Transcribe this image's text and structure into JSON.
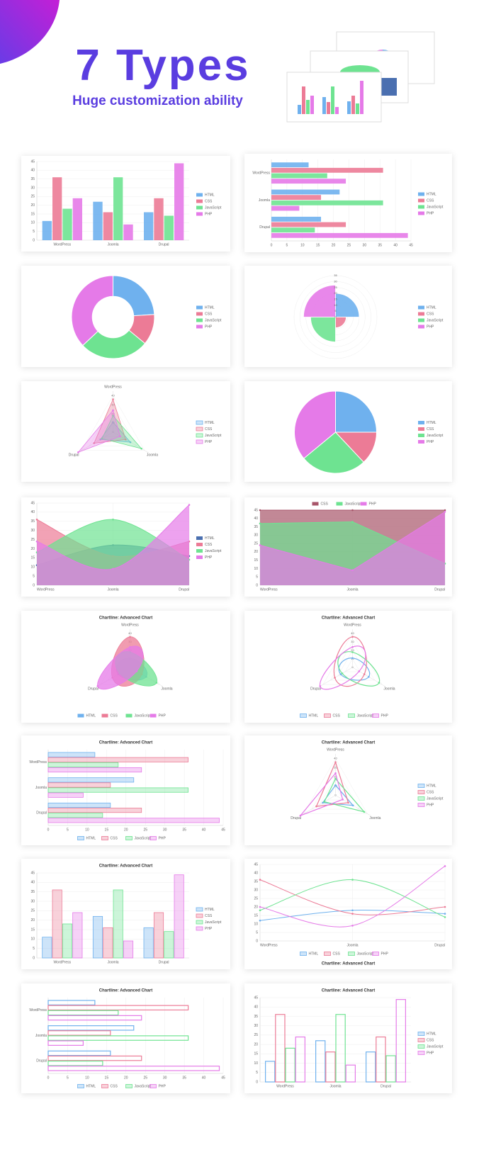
{
  "header": {
    "title": "7 Types",
    "subtitle": "Huge customization ability"
  },
  "chart_data": [
    {
      "type": "bar",
      "categories": [
        "WordPress",
        "Joomla",
        "Drupal"
      ],
      "series": [
        {
          "name": "HTML",
          "color": "#6fb1ee",
          "values": [
            11,
            22,
            16
          ]
        },
        {
          "name": "CSS",
          "color": "#ec7b96",
          "values": [
            36,
            16,
            24
          ]
        },
        {
          "name": "JavaScript",
          "color": "#6ee391",
          "values": [
            18,
            36,
            14
          ]
        },
        {
          "name": "PHP",
          "color": "#e57ae8",
          "values": [
            24,
            9,
            44
          ]
        }
      ],
      "ylim": [
        0,
        45
      ],
      "yticks": [
        0,
        5,
        10,
        15,
        20,
        25,
        30,
        35,
        40,
        45
      ],
      "legend": "right",
      "style": "solid"
    },
    {
      "type": "hbar",
      "categories": [
        "WordPress",
        "Joomla",
        "Drupal"
      ],
      "series": [
        {
          "name": "HTML",
          "color": "#6fb1ee",
          "values": [
            12,
            22,
            16
          ]
        },
        {
          "name": "CSS",
          "color": "#ec7b96",
          "values": [
            36,
            16,
            24
          ]
        },
        {
          "name": "JavaScript",
          "color": "#6ee391",
          "values": [
            18,
            36,
            14
          ]
        },
        {
          "name": "PHP",
          "color": "#e57ae8",
          "values": [
            24,
            9,
            44
          ]
        }
      ],
      "xlim": [
        0,
        45
      ],
      "xticks": [
        0,
        5,
        10,
        15,
        20,
        25,
        30,
        35,
        40,
        45
      ],
      "legend": "right",
      "style": "solid"
    },
    {
      "type": "doughnut",
      "categories": [
        "HTML",
        "CSS",
        "JavaScript",
        "PHP"
      ],
      "values": [
        24,
        12,
        27,
        37
      ],
      "colors": [
        "#6fb1ee",
        "#ec7b96",
        "#6ee391",
        "#e57ae8"
      ],
      "legend": "right"
    },
    {
      "type": "polarArea",
      "categories": [
        "HTML",
        "CSS",
        "JavaScript",
        "PHP"
      ],
      "values": [
        20,
        9,
        21,
        27
      ],
      "colors": [
        "#6fb1ee",
        "#ec7b96",
        "#6ee391",
        "#e57ae8"
      ],
      "rlim": [
        0,
        35
      ],
      "rticks": [
        0,
        5,
        10,
        15,
        20,
        25,
        30,
        35
      ],
      "legend": "right"
    },
    {
      "type": "radar",
      "categories": [
        "WordPress",
        "Joomla",
        "Drupal"
      ],
      "series": [
        {
          "name": "HTML",
          "color": "#6fb1ee",
          "values": [
            11,
            22,
            16
          ]
        },
        {
          "name": "CSS",
          "color": "#ec7b96",
          "values": [
            36,
            16,
            24
          ]
        },
        {
          "name": "JavaScript",
          "color": "#6ee391",
          "values": [
            18,
            36,
            14
          ]
        },
        {
          "name": "PHP",
          "color": "#e57ae8",
          "values": [
            24,
            9,
            44
          ]
        }
      ],
      "rlim": [
        0,
        45
      ],
      "rticks": [
        0,
        10,
        20,
        30,
        40
      ],
      "legend": "right",
      "style": "light",
      "curve": false
    },
    {
      "type": "pie",
      "categories": [
        "HTML",
        "CSS",
        "JavaScript",
        "PHP"
      ],
      "values": [
        25,
        13,
        26,
        36
      ],
      "colors": [
        "#6fb1ee",
        "#ec7b96",
        "#6ee391",
        "#e57ae8"
      ],
      "legend": "right"
    },
    {
      "type": "area",
      "categories": [
        "WordPress",
        "Joomla",
        "Drupal"
      ],
      "series": [
        {
          "name": "HTML",
          "color": "#4a6fb0",
          "values": [
            11,
            22,
            16
          ]
        },
        {
          "name": "CSS",
          "color": "#ec7b96",
          "values": [
            36,
            16,
            24
          ]
        },
        {
          "name": "JavaScript",
          "color": "#6ee391",
          "values": [
            18,
            36,
            14
          ]
        },
        {
          "name": "PHP",
          "color": "#e57ae8",
          "values": [
            24,
            9,
            44
          ]
        }
      ],
      "ylim": [
        0,
        45
      ],
      "yticks": [
        0,
        5,
        10,
        15,
        20,
        25,
        30,
        35,
        40,
        45
      ],
      "legend": "right",
      "style": "solid",
      "curve": true
    },
    {
      "type": "area",
      "categories": [
        "WordPress",
        "Joomla",
        "Drupal"
      ],
      "series": [
        {
          "name": "CSS",
          "color": "#a8566a",
          "values": [
            45,
            45,
            45
          ]
        },
        {
          "name": "JavaScript",
          "color": "#6ee391",
          "values": [
            37,
            38,
            13
          ]
        },
        {
          "name": "PHP",
          "color": "#e57ae8",
          "values": [
            24,
            9,
            44
          ]
        }
      ],
      "ylim": [
        0,
        45
      ],
      "yticks": [
        0,
        5,
        10,
        15,
        20,
        25,
        30,
        35,
        40,
        45
      ],
      "legend": "top",
      "style": "solid",
      "curve": false
    },
    {
      "type": "radar",
      "title": "Chartline: Advanced Chart",
      "categories": [
        "WordPress",
        "Joomla",
        "Drupal"
      ],
      "series": [
        {
          "name": "HTML",
          "color": "#6fb1ee",
          "values": [
            11,
            22,
            16
          ]
        },
        {
          "name": "CSS",
          "color": "#ec7b96",
          "values": [
            36,
            16,
            24
          ]
        },
        {
          "name": "JavaScript",
          "color": "#6ee391",
          "values": [
            18,
            36,
            14
          ]
        },
        {
          "name": "PHP",
          "color": "#e57ae8",
          "values": [
            24,
            9,
            44
          ]
        }
      ],
      "rlim": [
        0,
        45
      ],
      "rticks": [
        0,
        10,
        20,
        30,
        40
      ],
      "legend": "bottom",
      "style": "solid",
      "curve": true
    },
    {
      "type": "radar",
      "title": "Chartline: Advanced Chart",
      "categories": [
        "WordPress",
        "Joomla",
        "Drupal"
      ],
      "series": [
        {
          "name": "HTML",
          "color": "#6fb1ee",
          "values": [
            11,
            22,
            16
          ]
        },
        {
          "name": "CSS",
          "color": "#ec7b96",
          "values": [
            36,
            16,
            24
          ]
        },
        {
          "name": "JavaScript",
          "color": "#6ee391",
          "values": [
            18,
            36,
            14
          ]
        },
        {
          "name": "PHP",
          "color": "#e57ae8",
          "values": [
            24,
            9,
            44
          ]
        }
      ],
      "rlim": [
        0,
        45
      ],
      "rticks": [
        0,
        10,
        20,
        30,
        40
      ],
      "legend": "bottom",
      "style": "outline",
      "curve": true
    },
    {
      "type": "hbar",
      "title": "Chartline: Advanced Chart",
      "categories": [
        "WordPress",
        "Joomla",
        "Drupal"
      ],
      "series": [
        {
          "name": "HTML",
          "color": "#6fb1ee",
          "values": [
            12,
            22,
            16
          ]
        },
        {
          "name": "CSS",
          "color": "#ec7b96",
          "values": [
            36,
            16,
            24
          ]
        },
        {
          "name": "JavaScript",
          "color": "#6ee391",
          "values": [
            18,
            36,
            14
          ]
        },
        {
          "name": "PHP",
          "color": "#e57ae8",
          "values": [
            24,
            9,
            44
          ]
        }
      ],
      "xlim": [
        0,
        45
      ],
      "xticks": [
        0,
        5,
        10,
        15,
        20,
        25,
        30,
        35,
        40,
        45
      ],
      "legend": "bottom",
      "style": "light"
    },
    {
      "type": "radar",
      "title": "Chartline: Advanced Chart",
      "categories": [
        "WordPress",
        "Joomla",
        "Drupal"
      ],
      "series": [
        {
          "name": "HTML",
          "color": "#6fb1ee",
          "values": [
            11,
            22,
            16
          ]
        },
        {
          "name": "CSS",
          "color": "#ec7b96",
          "values": [
            36,
            16,
            24
          ]
        },
        {
          "name": "JavaScript",
          "color": "#6ee391",
          "values": [
            18,
            36,
            14
          ]
        },
        {
          "name": "PHP",
          "color": "#e57ae8",
          "values": [
            24,
            9,
            44
          ]
        }
      ],
      "rlim": [
        0,
        45
      ],
      "rticks": [
        0,
        10,
        20,
        30,
        40
      ],
      "legend": "right",
      "style": "outline",
      "curve": false
    },
    {
      "type": "bar",
      "title": "Chartline: Advanced Chart",
      "categories": [
        "WordPress",
        "Joomla",
        "Drupal"
      ],
      "series": [
        {
          "name": "HTML",
          "color": "#6fb1ee",
          "values": [
            11,
            22,
            16
          ]
        },
        {
          "name": "CSS",
          "color": "#ec7b96",
          "values": [
            36,
            16,
            24
          ]
        },
        {
          "name": "JavaScript",
          "color": "#6ee391",
          "values": [
            18,
            36,
            14
          ]
        },
        {
          "name": "PHP",
          "color": "#e57ae8",
          "values": [
            24,
            9,
            44
          ]
        }
      ],
      "ylim": [
        0,
        45
      ],
      "yticks": [
        0,
        5,
        10,
        15,
        20,
        25,
        30,
        35,
        40,
        45
      ],
      "legend": "right",
      "style": "light"
    },
    {
      "type": "line",
      "title": "Chartline: Advanced Chart",
      "title_position": "bottom",
      "categories": [
        "WordPress",
        "Joomla",
        "Drupal"
      ],
      "series": [
        {
          "name": "HTML",
          "color": "#6fb1ee",
          "values": [
            12,
            18,
            16
          ]
        },
        {
          "name": "CSS",
          "color": "#ec7b96",
          "values": [
            36,
            16,
            20
          ]
        },
        {
          "name": "JavaScript",
          "color": "#6ee391",
          "values": [
            18,
            36,
            14
          ]
        },
        {
          "name": "PHP",
          "color": "#e57ae8",
          "values": [
            20,
            9,
            44
          ]
        }
      ],
      "ylim": [
        0,
        45
      ],
      "yticks": [
        0,
        5,
        10,
        15,
        20,
        25,
        30,
        35,
        40,
        45
      ],
      "legend": "bottom",
      "style": "outline",
      "curve": true
    },
    {
      "type": "hbar",
      "title": "Chartline: Advanced Chart",
      "categories": [
        "WordPress",
        "Joomla",
        "Drupal"
      ],
      "series": [
        {
          "name": "HTML",
          "color": "#6fb1ee",
          "values": [
            12,
            22,
            16
          ]
        },
        {
          "name": "CSS",
          "color": "#ec7b96",
          "values": [
            36,
            16,
            24
          ]
        },
        {
          "name": "JavaScript",
          "color": "#6ee391",
          "values": [
            18,
            36,
            14
          ]
        },
        {
          "name": "PHP",
          "color": "#e57ae8",
          "values": [
            24,
            9,
            44
          ]
        }
      ],
      "xlim": [
        0,
        45
      ],
      "xticks": [
        0,
        5,
        10,
        15,
        20,
        25,
        30,
        35,
        40,
        45
      ],
      "legend": "bottom",
      "style": "outline"
    },
    {
      "type": "bar",
      "title": "Chartline: Advanced Chart",
      "categories": [
        "WordPress",
        "Joomla",
        "Drupal"
      ],
      "series": [
        {
          "name": "HTML",
          "color": "#6fb1ee",
          "values": [
            11,
            22,
            16
          ]
        },
        {
          "name": "CSS",
          "color": "#ec7b96",
          "values": [
            36,
            16,
            24
          ]
        },
        {
          "name": "JavaScript",
          "color": "#6ee391",
          "values": [
            18,
            36,
            14
          ]
        },
        {
          "name": "PHP",
          "color": "#e57ae8",
          "values": [
            24,
            9,
            44
          ]
        }
      ],
      "ylim": [
        0,
        45
      ],
      "yticks": [
        0,
        5,
        10,
        15,
        20,
        25,
        30,
        35,
        40,
        45
      ],
      "legend": "right",
      "style": "outline"
    }
  ]
}
